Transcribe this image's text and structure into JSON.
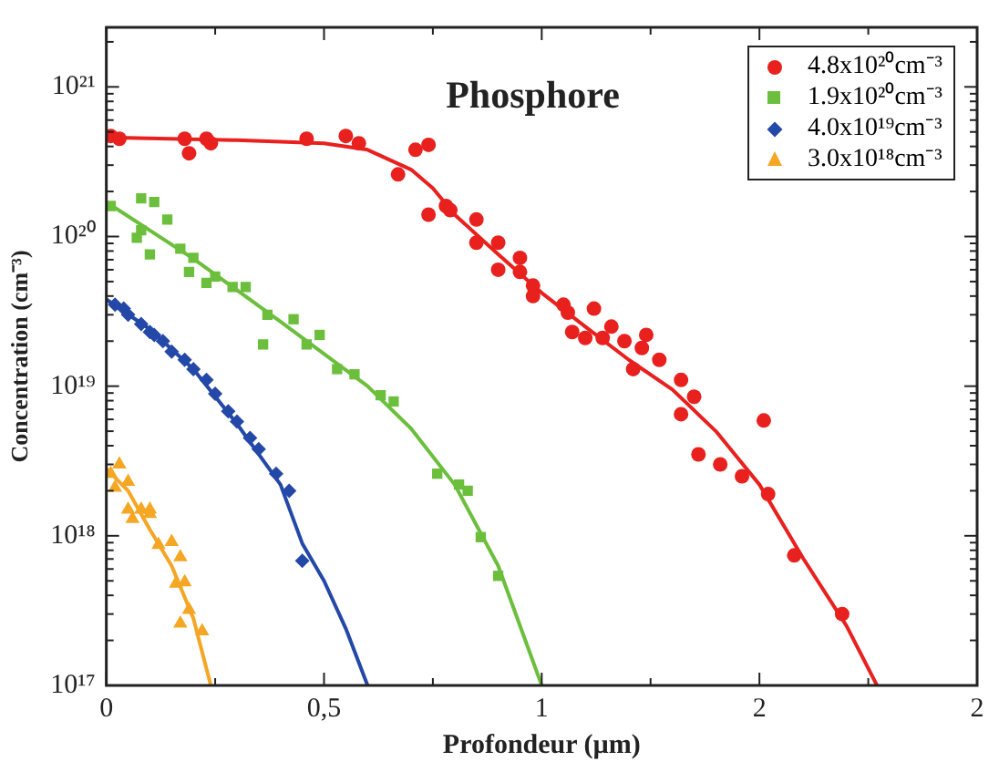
{
  "chart_data": {
    "type": "scatter",
    "title": "Phosphore",
    "xlabel": "Profondeur (µm)",
    "ylabel": "Concentration (cm⁻³)",
    "log": "y",
    "grid": false,
    "legend": "top right",
    "xlim": [
      0,
      2
    ],
    "xticks": [
      {
        "value": 0,
        "label": "0"
      },
      {
        "value": 0.25,
        "label": null
      },
      {
        "value": 0.5,
        "label": "0,5"
      },
      {
        "value": 0.75,
        "label": null
      },
      {
        "value": 1,
        "label": "1"
      },
      {
        "value": 1.25,
        "label": null
      },
      {
        "value": 1.5,
        "label": "2"
      },
      {
        "value": 1.75,
        "label": null
      },
      {
        "value": 2,
        "label": "2"
      }
    ],
    "ylim": [
      1e+17,
      2.5e+21
    ],
    "yticks": [
      {
        "value": 1e+17,
        "label": "10¹⁷"
      },
      {
        "value": 2e+17,
        "label": null
      },
      {
        "value": 3e+17,
        "label": null
      },
      {
        "value": 4e+17,
        "label": null
      },
      {
        "value": 5e+17,
        "label": null
      },
      {
        "value": 6e+17,
        "label": null
      },
      {
        "value": 7e+17,
        "label": null
      },
      {
        "value": 8e+17,
        "label": null
      },
      {
        "value": 9e+17,
        "label": null
      },
      {
        "value": 1e+18,
        "label": "10¹⁸"
      },
      {
        "value": 2e+18,
        "label": null
      },
      {
        "value": 3e+18,
        "label": null
      },
      {
        "value": 4e+18,
        "label": null
      },
      {
        "value": 5e+18,
        "label": null
      },
      {
        "value": 6e+18,
        "label": null
      },
      {
        "value": 7e+18,
        "label": null
      },
      {
        "value": 8e+18,
        "label": null
      },
      {
        "value": 9e+18,
        "label": null
      },
      {
        "value": 1e+19,
        "label": "10¹⁹"
      },
      {
        "value": 2e+19,
        "label": null
      },
      {
        "value": 3e+19,
        "label": null
      },
      {
        "value": 4e+19,
        "label": null
      },
      {
        "value": 5e+19,
        "label": null
      },
      {
        "value": 6e+19,
        "label": null
      },
      {
        "value": 7e+19,
        "label": null
      },
      {
        "value": 8e+19,
        "label": null
      },
      {
        "value": 9e+19,
        "label": null
      },
      {
        "value": 1e+20,
        "label": "10²⁰"
      },
      {
        "value": 2e+20,
        "label": null
      },
      {
        "value": 3e+20,
        "label": null
      },
      {
        "value": 4e+20,
        "label": null
      },
      {
        "value": 5e+20,
        "label": null
      },
      {
        "value": 6e+20,
        "label": null
      },
      {
        "value": 7e+20,
        "label": null
      },
      {
        "value": 8e+20,
        "label": null
      },
      {
        "value": 9e+20,
        "label": null
      },
      {
        "value": 1e+21,
        "label": "10²¹"
      },
      {
        "value": 2e+21,
        "label": null
      }
    ],
    "series": [
      {
        "name": "4.8x10²⁰cm⁻³",
        "color": "#e8201e",
        "marker": "circle",
        "x": [
          0.01,
          0.03,
          0.18,
          0.19,
          0.23,
          0.24,
          0.46,
          0.55,
          0.58,
          0.67,
          0.71,
          0.74,
          0.74,
          0.78,
          0.79,
          0.85,
          0.85,
          0.9,
          0.9,
          0.95,
          0.95,
          0.98,
          0.98,
          1.05,
          1.06,
          1.07,
          1.1,
          1.12,
          1.14,
          1.16,
          1.19,
          1.21,
          1.23,
          1.24,
          1.27,
          1.32,
          1.32,
          1.35,
          1.36,
          1.41,
          1.46,
          1.51,
          1.52,
          1.58,
          1.69
        ],
        "values": [
          4.7e+20,
          4.5e+20,
          4.5e+20,
          3.6e+20,
          4.5e+20,
          4.2e+20,
          4.5e+20,
          4.7e+20,
          4.2e+20,
          2.6e+20,
          3.8e+20,
          4.1e+20,
          1.4e+20,
          1.6e+20,
          1.5e+20,
          1.3e+20,
          9.1e+19,
          9.1e+19,
          6e+19,
          5.8e+19,
          7.2e+19,
          4.7e+19,
          4e+19,
          3.5e+19,
          3.1e+19,
          2.3e+19,
          2.1e+19,
          3.3e+19,
          2.1e+19,
          2.5e+19,
          2e+19,
          1.3e+19,
          1.8e+19,
          2.2e+19,
          1.5e+19,
          1.1e+19,
          6.5e+18,
          8.5e+18,
          3.5e+18,
          3e+18,
          2.5e+18,
          5.9e+18,
          1.9e+18,
          7.4e+17,
          3e+17
        ]
      },
      {
        "name": "1.9x10²⁰cm⁻³",
        "color": "#6cbf3c",
        "marker": "square",
        "x": [
          0.01,
          0.08,
          0.11,
          0.08,
          0.07,
          0.1,
          0.14,
          0.17,
          0.2,
          0.19,
          0.23,
          0.25,
          0.29,
          0.32,
          0.37,
          0.36,
          0.43,
          0.46,
          0.49,
          0.53,
          0.57,
          0.63,
          0.66,
          0.76,
          0.81,
          0.83,
          0.86,
          0.9
        ],
        "values": [
          1.6e+20,
          1.8e+20,
          1.7e+20,
          1.1e+20,
          9.8e+19,
          7.6e+19,
          1.3e+20,
          8.3e+19,
          7.2e+19,
          5.8e+19,
          4.9e+19,
          5.4e+19,
          4.6e+19,
          4.6e+19,
          3e+19,
          1.9e+19,
          2.8e+19,
          1.9e+19,
          2.2e+19,
          1.3e+19,
          1.2e+19,
          8.7e+18,
          7.9e+18,
          2.6e+18,
          2.2e+18,
          2e+18,
          9.8e+17,
          5.4e+17
        ]
      },
      {
        "name": "4.0x10¹⁹cm⁻³",
        "color": "#2448a8",
        "marker": "diamond",
        "x": [
          0.02,
          0.04,
          0.05,
          0.08,
          0.1,
          0.11,
          0.13,
          0.15,
          0.18,
          0.2,
          0.23,
          0.25,
          0.28,
          0.3,
          0.33,
          0.35,
          0.39,
          0.42,
          0.45
        ],
        "values": [
          3.5e+19,
          3.3e+19,
          3e+19,
          2.6e+19,
          2.3e+19,
          2.2e+19,
          2e+19,
          1.7e+19,
          1.5e+19,
          1.3e+19,
          1.1e+19,
          8.9e+18,
          6.8e+18,
          5.8e+18,
          4.5e+18,
          3.8e+18,
          2.6e+18,
          2e+18,
          6.8e+17
        ]
      },
      {
        "name": "3.0x10¹⁸cm⁻³",
        "color": "#f5a623",
        "marker": "triangle",
        "x": [
          0.01,
          0.03,
          0.02,
          0.05,
          0.05,
          0.06,
          0.08,
          0.1,
          0.1,
          0.12,
          0.15,
          0.17,
          0.16,
          0.18,
          0.17,
          0.19,
          0.22
        ],
        "values": [
          2.6e+18,
          3e+18,
          2.1e+18,
          2.3e+18,
          1.5e+18,
          1.3e+18,
          1.5e+18,
          1.4e+18,
          1.5e+18,
          8.7e+17,
          9.1e+17,
          7.2e+17,
          4.8e+17,
          4.9e+17,
          2.6e+17,
          3.2e+17,
          2.3e+17
        ]
      },
      {
        "type": "line",
        "color": "#e8201e",
        "marker": "none",
        "x": [
          0,
          0.3,
          0.5,
          0.6,
          0.7,
          0.75,
          0.8,
          0.9,
          1.0,
          1.1,
          1.2,
          1.3,
          1.4,
          1.5,
          1.6,
          1.7,
          1.77
        ],
        "values": [
          4.6e+20,
          4.4e+20,
          4.2e+20,
          3.8e+20,
          2.8e+20,
          2.1e+20,
          1.4e+20,
          7.6e+19,
          4.2e+19,
          2.5e+19,
          1.5e+19,
          9.5e+18,
          5e+18,
          2.2e+18,
          7.1e+17,
          2.5e+17,
          1e+17
        ]
      },
      {
        "type": "line",
        "color": "#6cbf3c",
        "marker": "none",
        "x": [
          0,
          0.2,
          0.4,
          0.6,
          0.7,
          0.8,
          0.9,
          1.0
        ],
        "values": [
          1.7e+20,
          7.1e+19,
          2.7e+19,
          1e+19,
          5.2e+18,
          2.2e+18,
          6.3e+17,
          1e+17
        ]
      },
      {
        "type": "line",
        "color": "#2448a8",
        "marker": "none",
        "x": [
          0,
          0.1,
          0.2,
          0.3,
          0.4,
          0.45,
          0.5,
          0.55,
          0.6
        ],
        "values": [
          3.8e+19,
          2.4e+19,
          1.3e+19,
          5.6e+18,
          2.2e+18,
          8.9e+17,
          5e+17,
          2.4e+17,
          1e+17
        ]
      },
      {
        "type": "line",
        "color": "#f5a623",
        "marker": "none",
        "x": [
          0,
          0.05,
          0.1,
          0.15,
          0.2,
          0.24
        ],
        "values": [
          2.8e+18,
          2e+18,
          1.1e+18,
          6.3e+17,
          2.8e+17,
          1e+17
        ]
      }
    ]
  }
}
